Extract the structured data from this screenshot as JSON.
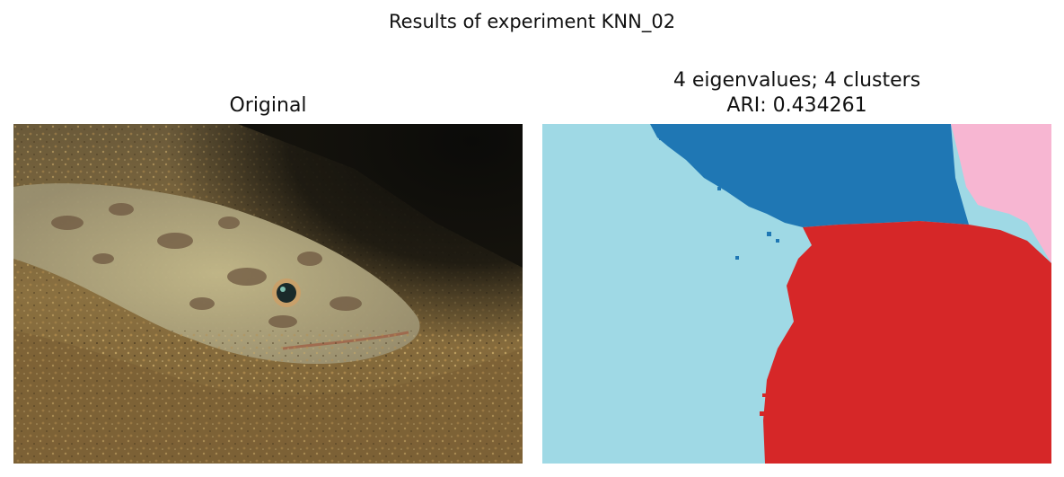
{
  "figure": {
    "title": "Results of experiment KNN_02"
  },
  "panels": [
    {
      "title_line1": "Original",
      "title_line2": "",
      "content": "photo of a camouflaged flatfish resting on sandy seabed"
    },
    {
      "title_line1": "4 eigenvalues; 4 clusters",
      "title_line2": "ARI: 0.434261",
      "cluster_colors": [
        "#9fd9e5",
        "#1f77b4",
        "#f7b6d2",
        "#d62728"
      ]
    }
  ]
}
